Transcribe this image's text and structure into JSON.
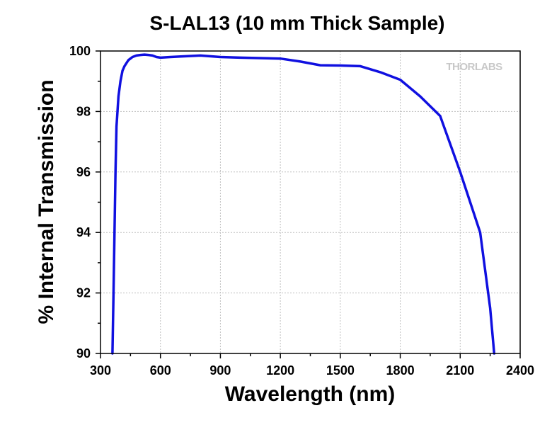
{
  "chart_data": {
    "type": "line",
    "title": "S-LAL13 (10 mm Thick Sample)",
    "xlabel": "Wavelength (nm)",
    "ylabel": "% Internal Transmission",
    "xlim": [
      300,
      2400
    ],
    "ylim": [
      90,
      100
    ],
    "xticks": [
      300,
      600,
      900,
      1200,
      1500,
      1800,
      2100,
      2400
    ],
    "xtick_labels": [
      "300",
      "600",
      "900",
      "1200",
      "1500",
      "1800",
      "2100",
      "2400"
    ],
    "yticks": [
      90,
      92,
      94,
      96,
      98,
      100
    ],
    "ytick_labels": [
      "90",
      "92",
      "94",
      "96",
      "98",
      "100"
    ],
    "grid": true,
    "watermark": "THORLABS",
    "colors": {
      "line": "#1010e0",
      "grid": "#bfbfbf",
      "axis": "#000000"
    },
    "series": [
      {
        "x": [
          360,
          365,
          370,
          375,
          380,
          390,
          400,
          410,
          420,
          430,
          440,
          460,
          480,
          500,
          520,
          540,
          560,
          580,
          600,
          650,
          700,
          800,
          900,
          1000,
          1200,
          1300,
          1400,
          1500,
          1600,
          1700,
          1800,
          1900,
          2000,
          2100,
          2200,
          2250,
          2270
        ],
        "y": [
          90.0,
          92.0,
          94.0,
          96.0,
          97.5,
          98.5,
          99.0,
          99.35,
          99.5,
          99.6,
          99.7,
          99.8,
          99.85,
          99.87,
          99.88,
          99.87,
          99.85,
          99.8,
          99.78,
          99.8,
          99.82,
          99.85,
          99.8,
          99.78,
          99.75,
          99.65,
          99.53,
          99.52,
          99.5,
          99.3,
          99.05,
          98.5,
          97.85,
          96.0,
          94.0,
          91.5,
          90.0
        ]
      }
    ]
  }
}
